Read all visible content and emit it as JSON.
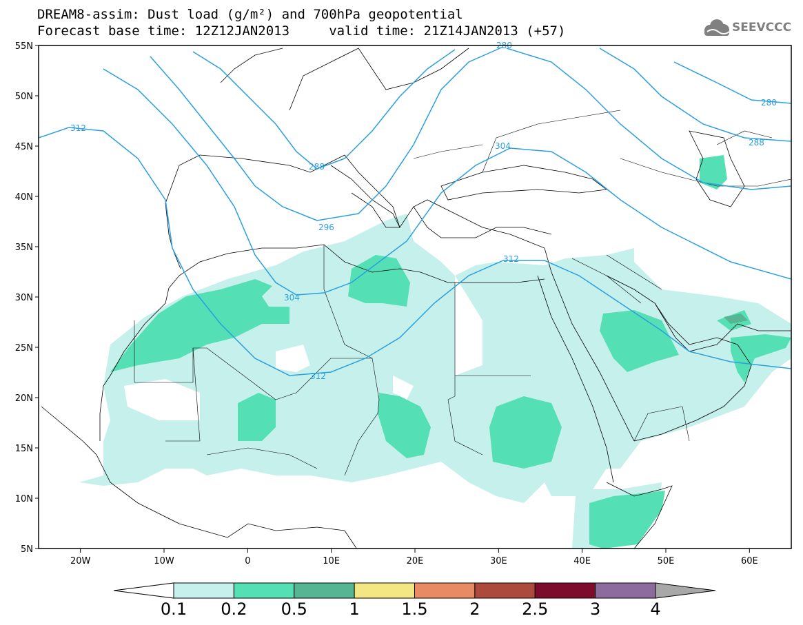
{
  "title": {
    "line1": "DREAM8-assim: Dust load (g/m²) and 700hPa geopotential",
    "line2": "Forecast base time: 12Z12JAN2013     valid time: 21Z14JAN2013 (+57)"
  },
  "logo": {
    "text": "SEEVCCC",
    "icon": "cloud-icon"
  },
  "axes": {
    "lat_labels": [
      "55N",
      "50N",
      "45N",
      "40N",
      "35N",
      "30N",
      "25N",
      "20N",
      "15N",
      "10N",
      "5N"
    ],
    "lon_labels": [
      "20W",
      "10W",
      "0",
      "10E",
      "20E",
      "30E",
      "40E",
      "50E",
      "60E"
    ],
    "lat_range": [
      5,
      55
    ],
    "lon_range": [
      -25,
      65
    ]
  },
  "contours": {
    "labels": [
      "312",
      "280",
      "288",
      "304",
      "288",
      "296",
      "304",
      "312",
      "312",
      "280"
    ],
    "color": "#2a9fe0"
  },
  "colorbar": {
    "levels": [
      "0.1",
      "0.2",
      "0.5",
      "1",
      "1.5",
      "2",
      "2.5",
      "3",
      "4"
    ],
    "colors": [
      "#ffffff",
      "#c6f0eb",
      "#55dfb4",
      "#56b694",
      "#f2e782",
      "#e88a64",
      "#ac4b3d",
      "#7d0c2c",
      "#8e6b9e",
      "#a8a8a8"
    ]
  }
}
